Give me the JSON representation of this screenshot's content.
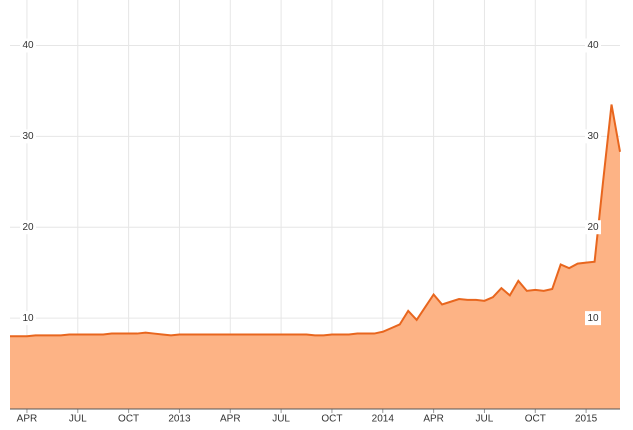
{
  "chart_data": {
    "type": "area",
    "x": [
      null,
      null,
      "APR",
      null,
      null,
      null,
      null,
      null,
      "JUL",
      null,
      null,
      null,
      null,
      null,
      "OCT",
      null,
      null,
      null,
      null,
      null,
      "2013",
      null,
      null,
      null,
      null,
      null,
      "APR",
      null,
      null,
      null,
      null,
      null,
      "JUL",
      null,
      null,
      null,
      null,
      null,
      "OCT",
      null,
      null,
      null,
      null,
      null,
      "2014",
      null,
      null,
      null,
      null,
      null,
      "APR",
      null,
      null,
      null,
      null,
      null,
      "JUL",
      null,
      null,
      null,
      null,
      null,
      "OCT",
      null,
      null,
      null,
      null,
      null,
      "2015",
      null,
      null,
      null,
      null
    ],
    "values": [
      8.0,
      8.0,
      8.0,
      8.1,
      8.1,
      8.1,
      8.1,
      8.2,
      8.2,
      8.2,
      8.2,
      8.2,
      8.3,
      8.3,
      8.3,
      8.3,
      8.4,
      8.3,
      8.2,
      8.1,
      8.2,
      8.2,
      8.2,
      8.2,
      8.2,
      8.2,
      8.2,
      8.2,
      8.2,
      8.2,
      8.2,
      8.2,
      8.2,
      8.2,
      8.2,
      8.2,
      8.1,
      8.1,
      8.2,
      8.2,
      8.2,
      8.3,
      8.3,
      8.3,
      8.5,
      8.9,
      9.3,
      10.8,
      9.8,
      11.2,
      12.6,
      11.5,
      11.8,
      12.1,
      12.0,
      12.0,
      11.9,
      12.3,
      13.3,
      12.5,
      14.1,
      13.0,
      13.1,
      13.0,
      13.2,
      15.9,
      15.5,
      16.0,
      16.1,
      16.2,
      25.0,
      33.5,
      28.3
    ],
    "color": "#e8661e",
    "fill": "#fdb385",
    "ylim": [
      0,
      45
    ],
    "yticks": [
      10,
      20,
      30,
      40
    ],
    "grid": true
  }
}
